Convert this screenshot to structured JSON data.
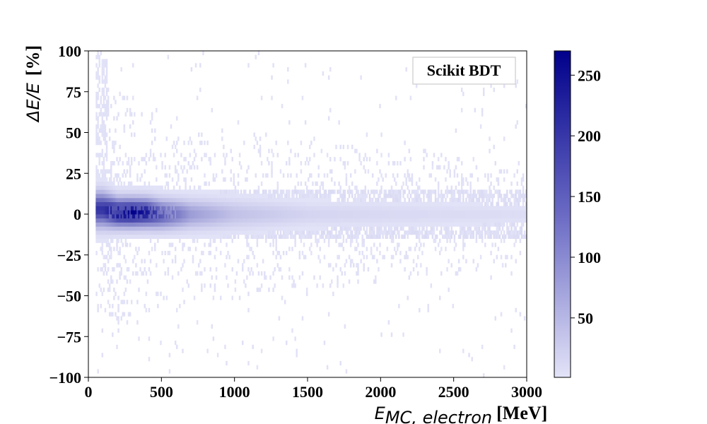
{
  "chart_data": {
    "type": "heatmap",
    "legend_label": "Scikit BDT",
    "legend_position": "top-right",
    "xlabel": {
      "symbol": "E",
      "subscript": "MC, electron",
      "unit": "[MeV]"
    },
    "ylabel": {
      "prefix": "ΔE/E",
      "unit": "[%]"
    },
    "xlim": [
      0,
      3000
    ],
    "ylim": [
      -100,
      100
    ],
    "x_ticks": [
      0,
      500,
      1000,
      1500,
      2000,
      2500,
      3000
    ],
    "y_ticks": [
      -100,
      -75,
      -50,
      -25,
      0,
      25,
      50,
      75,
      100
    ],
    "y_tick_labels": [
      "−100",
      "−75",
      "−50",
      "−25",
      "0",
      "25",
      "50",
      "75",
      "100"
    ],
    "colorbar": {
      "min": 1,
      "max": 270,
      "ticks": [
        50,
        100,
        150,
        200,
        250
      ],
      "color_low": "#e3e3f8",
      "color_high": "#00008b"
    },
    "grid": false,
    "core_ridge": [
      {
        "x": 100,
        "mean": 3,
        "sigma": 6,
        "peak": 200
      },
      {
        "x": 200,
        "mean": 1,
        "sigma": 5,
        "peak": 260
      },
      {
        "x": 300,
        "mean": 1,
        "sigma": 5,
        "peak": 270
      },
      {
        "x": 400,
        "mean": 1,
        "sigma": 5,
        "peak": 240
      },
      {
        "x": 500,
        "mean": 0,
        "sigma": 5,
        "peak": 160
      },
      {
        "x": 700,
        "mean": 0,
        "sigma": 5,
        "peak": 70
      },
      {
        "x": 1000,
        "mean": 0,
        "sigma": 5,
        "peak": 30
      },
      {
        "x": 1500,
        "mean": 0,
        "sigma": 4,
        "peak": 12
      },
      {
        "x": 2000,
        "mean": 0,
        "sigma": 4,
        "peak": 8
      },
      {
        "x": 3000,
        "mean": 0,
        "sigma": 3,
        "peak": 5
      }
    ]
  }
}
